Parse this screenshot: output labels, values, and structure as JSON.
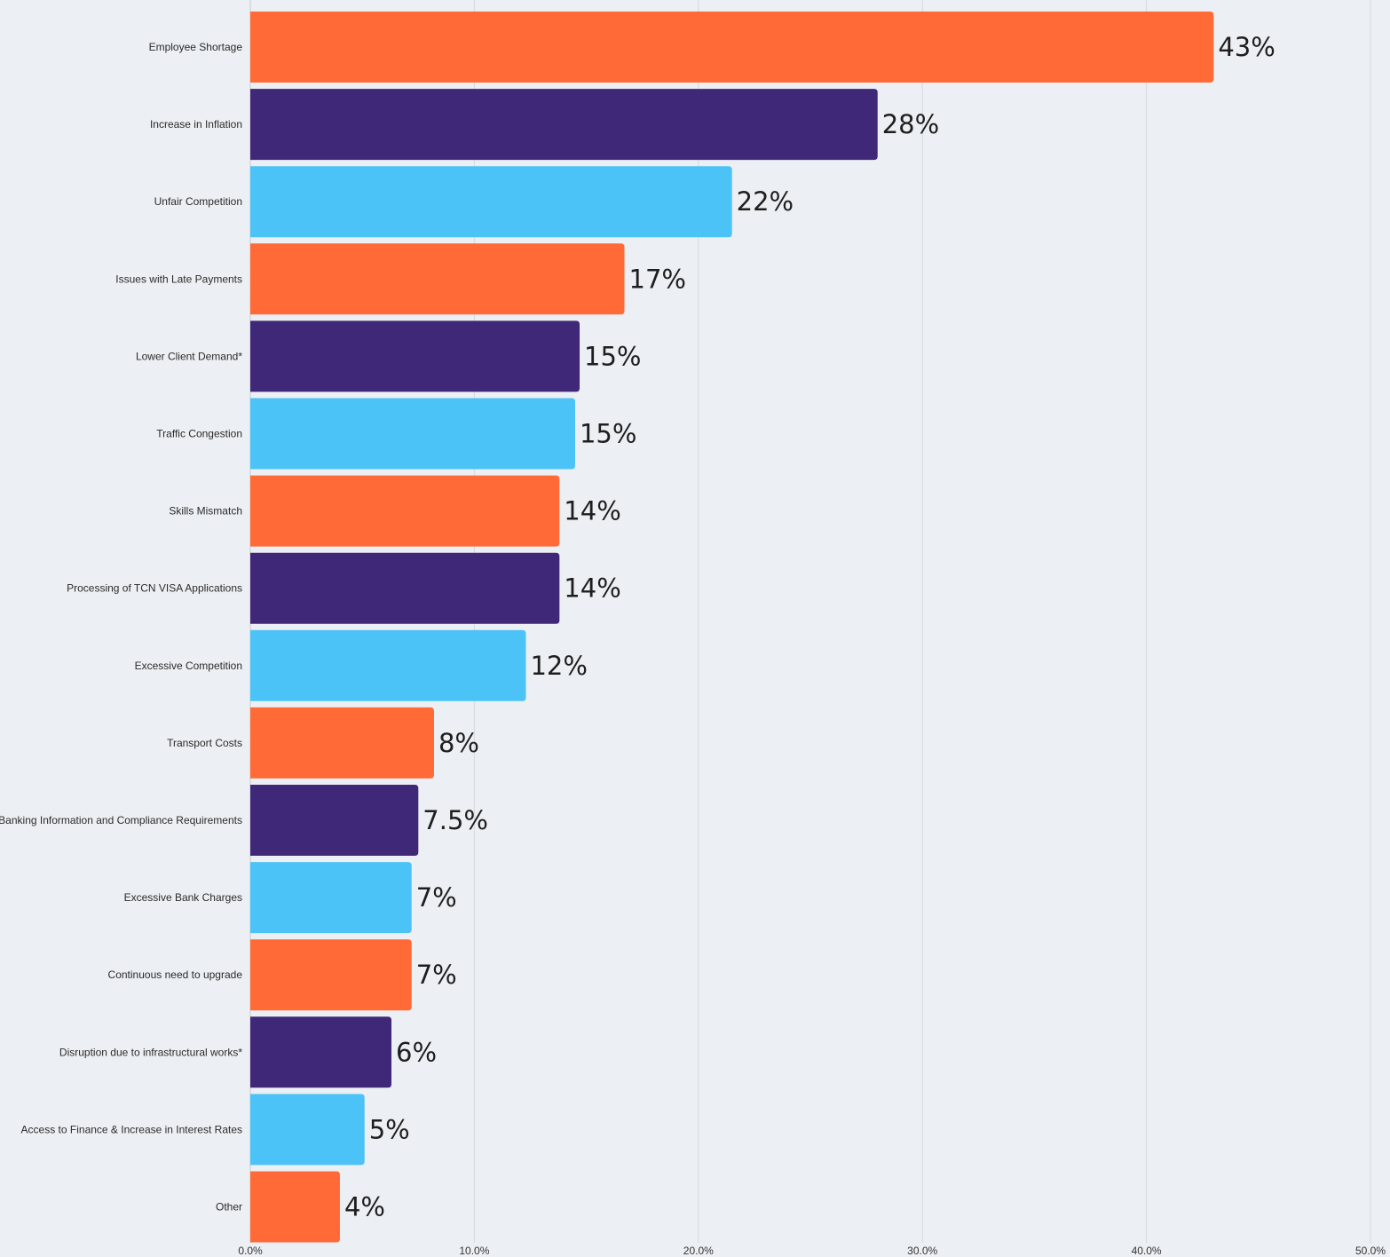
{
  "chart_data": {
    "type": "bar",
    "orientation": "horizontal",
    "title": "",
    "xlabel": "",
    "ylabel": "",
    "xlim": [
      0,
      50
    ],
    "grid": true,
    "legend": "none",
    "ticks": [
      {
        "value": 0,
        "label": "0.0%"
      },
      {
        "value": 10,
        "label": "10.0%"
      },
      {
        "value": 20,
        "label": "20.0%"
      },
      {
        "value": 30,
        "label": "30.0%"
      },
      {
        "value": 40,
        "label": "40.0%"
      },
      {
        "value": 50,
        "label": "50.0%"
      }
    ],
    "colors": {
      "orange": "#ff6a36",
      "purple": "#402878",
      "blue": "#4bc3f7"
    },
    "categories": [
      "Employee Shortage",
      "Increase in Inflation",
      "Unfair Competition",
      "Issues with Late Payments",
      "Lower Client Demand*",
      "Traffic Congestion",
      "Skills Mismatch",
      "Processing of TCN VISA Applications",
      "Excessive Competition",
      "Transport Costs",
      "Banking Information and Compliance Requirements",
      "Excessive Bank Charges",
      "Continuous need to upgrade",
      "Disruption due to infrastructural works*",
      "Access to Finance & Increase in Interest Rates",
      "Other"
    ],
    "values": [
      43,
      28,
      21.5,
      16.7,
      14.7,
      14.5,
      13.8,
      13.8,
      12.3,
      8.2,
      7.5,
      7.2,
      7.2,
      6.3,
      5.1,
      4
    ],
    "data_labels": [
      "43%",
      "28%",
      "22%",
      "17%",
      "15%",
      "15%",
      "14%",
      "14%",
      "12%",
      "8%",
      "7.5%",
      "7%",
      "7%",
      "6%",
      "5%",
      "4%"
    ],
    "bar_colors": [
      "orange",
      "purple",
      "blue",
      "orange",
      "purple",
      "blue",
      "orange",
      "purple",
      "blue",
      "orange",
      "purple",
      "blue",
      "orange",
      "purple",
      "blue",
      "orange"
    ]
  }
}
